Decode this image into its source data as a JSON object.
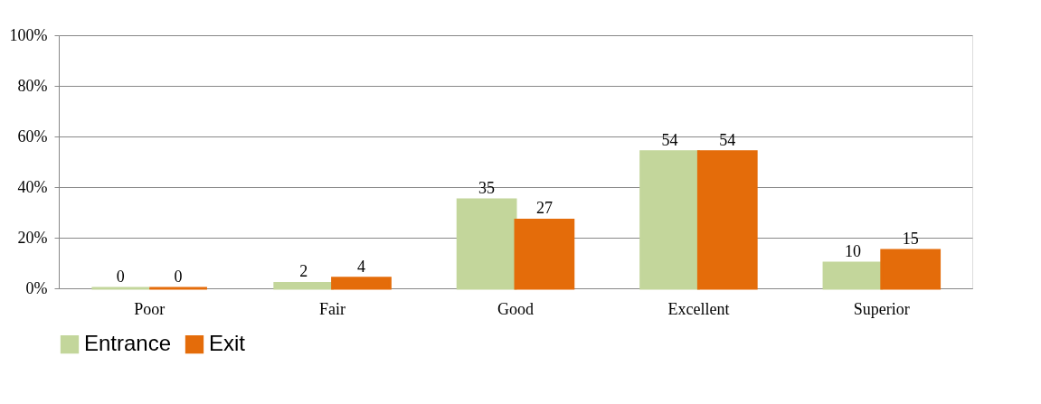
{
  "chart_data": {
    "type": "bar",
    "categories": [
      "Poor",
      "Fair",
      "Good",
      "Excellent",
      "Superior"
    ],
    "series": [
      {
        "name": "Entrance",
        "color": "#c3d69b",
        "values": [
          0,
          2,
          35,
          54,
          10
        ]
      },
      {
        "name": "Exit",
        "color": "#e46c0a",
        "values": [
          0,
          4,
          27,
          54,
          15
        ]
      }
    ],
    "ylim": [
      0,
      100
    ],
    "yticks": [
      {
        "value": 0,
        "label": "0%"
      },
      {
        "value": 20,
        "label": "20%"
      },
      {
        "value": 40,
        "label": "40%"
      },
      {
        "value": 60,
        "label": "60%"
      },
      {
        "value": 80,
        "label": "80%"
      },
      {
        "value": 100,
        "label": "100%"
      }
    ],
    "grid": "y",
    "legend": "bottom",
    "data_labels": true
  }
}
